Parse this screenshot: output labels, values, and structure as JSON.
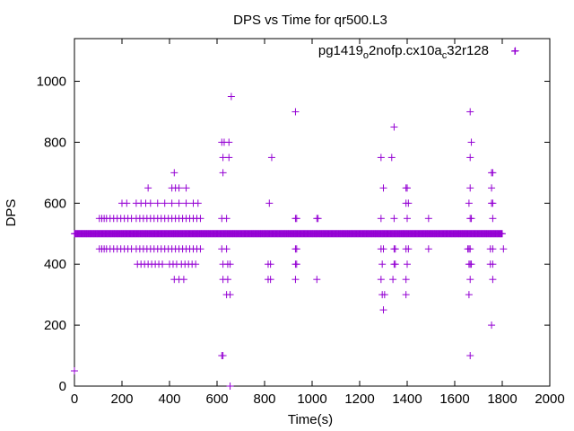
{
  "chart_data": {
    "type": "scatter",
    "title": "DPS vs Time for qr500.L3",
    "xlabel": "Time(s)",
    "ylabel": "DPS",
    "xlim": [
      0,
      2000
    ],
    "ylim": [
      0,
      1140
    ],
    "xticks": [
      0,
      200,
      400,
      600,
      800,
      1000,
      1200,
      1400,
      1600,
      1800,
      2000
    ],
    "yticks": [
      0,
      200,
      400,
      600,
      800,
      1000
    ],
    "grid": false,
    "legend_position": "top-right",
    "marker": "plus",
    "colors": {
      "series": "#9400d3",
      "axis": "#000000"
    },
    "series": [
      {
        "name_parts": [
          "pg1419",
          "o",
          "2nofp.cx10a",
          "c",
          "32r128"
        ],
        "baseline": {
          "y": 500,
          "x_start": 0,
          "x_end": 1800,
          "step": 3
        },
        "points": [
          [
            0,
            50
          ],
          [
            105,
            550
          ],
          [
            115,
            550
          ],
          [
            125,
            550
          ],
          [
            135,
            550
          ],
          [
            150,
            550
          ],
          [
            165,
            550
          ],
          [
            180,
            550
          ],
          [
            195,
            550
          ],
          [
            210,
            550
          ],
          [
            225,
            550
          ],
          [
            240,
            550
          ],
          [
            260,
            550
          ],
          [
            275,
            550
          ],
          [
            290,
            550
          ],
          [
            305,
            550
          ],
          [
            320,
            550
          ],
          [
            335,
            550
          ],
          [
            350,
            550
          ],
          [
            365,
            550
          ],
          [
            380,
            550
          ],
          [
            395,
            550
          ],
          [
            410,
            550
          ],
          [
            425,
            550
          ],
          [
            440,
            550
          ],
          [
            455,
            550
          ],
          [
            470,
            550
          ],
          [
            485,
            550
          ],
          [
            500,
            550
          ],
          [
            515,
            550
          ],
          [
            530,
            550
          ],
          [
            105,
            450
          ],
          [
            115,
            450
          ],
          [
            125,
            450
          ],
          [
            135,
            450
          ],
          [
            150,
            450
          ],
          [
            165,
            450
          ],
          [
            180,
            450
          ],
          [
            195,
            450
          ],
          [
            210,
            450
          ],
          [
            225,
            450
          ],
          [
            240,
            450
          ],
          [
            260,
            450
          ],
          [
            275,
            450
          ],
          [
            290,
            450
          ],
          [
            305,
            450
          ],
          [
            320,
            450
          ],
          [
            335,
            450
          ],
          [
            350,
            450
          ],
          [
            365,
            450
          ],
          [
            380,
            450
          ],
          [
            395,
            450
          ],
          [
            410,
            450
          ],
          [
            425,
            450
          ],
          [
            440,
            450
          ],
          [
            455,
            450
          ],
          [
            470,
            450
          ],
          [
            485,
            450
          ],
          [
            500,
            450
          ],
          [
            515,
            450
          ],
          [
            530,
            450
          ],
          [
            265,
            400
          ],
          [
            280,
            400
          ],
          [
            295,
            400
          ],
          [
            310,
            400
          ],
          [
            325,
            400
          ],
          [
            340,
            400
          ],
          [
            355,
            400
          ],
          [
            370,
            400
          ],
          [
            400,
            400
          ],
          [
            415,
            400
          ],
          [
            430,
            400
          ],
          [
            450,
            400
          ],
          [
            465,
            400
          ],
          [
            480,
            400
          ],
          [
            495,
            400
          ],
          [
            510,
            400
          ],
          [
            200,
            600
          ],
          [
            220,
            600
          ],
          [
            260,
            600
          ],
          [
            280,
            600
          ],
          [
            300,
            600
          ],
          [
            320,
            600
          ],
          [
            350,
            600
          ],
          [
            380,
            600
          ],
          [
            410,
            600
          ],
          [
            440,
            600
          ],
          [
            470,
            600
          ],
          [
            500,
            600
          ],
          [
            520,
            600
          ],
          [
            310,
            650
          ],
          [
            410,
            650
          ],
          [
            425,
            650
          ],
          [
            440,
            650
          ],
          [
            470,
            650
          ],
          [
            420,
            700
          ],
          [
            420,
            350
          ],
          [
            440,
            350
          ],
          [
            460,
            350
          ],
          [
            620,
            800
          ],
          [
            630,
            800
          ],
          [
            650,
            800
          ],
          [
            625,
            750
          ],
          [
            650,
            750
          ],
          [
            625,
            700
          ],
          [
            620,
            550
          ],
          [
            640,
            550
          ],
          [
            620,
            450
          ],
          [
            640,
            450
          ],
          [
            625,
            400
          ],
          [
            645,
            400
          ],
          [
            655,
            400
          ],
          [
            625,
            350
          ],
          [
            645,
            350
          ],
          [
            640,
            300
          ],
          [
            655,
            300
          ],
          [
            620,
            100
          ],
          [
            625,
            100
          ],
          [
            660,
            950
          ],
          [
            655,
            0
          ],
          [
            830,
            750
          ],
          [
            820,
            600
          ],
          [
            815,
            400
          ],
          [
            825,
            400
          ],
          [
            815,
            350
          ],
          [
            825,
            350
          ],
          [
            930,
            900
          ],
          [
            930,
            550
          ],
          [
            935,
            550
          ],
          [
            930,
            450
          ],
          [
            935,
            450
          ],
          [
            930,
            400
          ],
          [
            935,
            400
          ],
          [
            930,
            350
          ],
          [
            1020,
            550
          ],
          [
            1025,
            550
          ],
          [
            1020,
            350
          ],
          [
            1290,
            750
          ],
          [
            1335,
            750
          ],
          [
            1345,
            850
          ],
          [
            1300,
            650
          ],
          [
            1395,
            650
          ],
          [
            1400,
            650
          ],
          [
            1395,
            600
          ],
          [
            1405,
            600
          ],
          [
            1290,
            550
          ],
          [
            1345,
            550
          ],
          [
            1400,
            550
          ],
          [
            1490,
            550
          ],
          [
            1290,
            450
          ],
          [
            1300,
            450
          ],
          [
            1345,
            450
          ],
          [
            1350,
            450
          ],
          [
            1395,
            450
          ],
          [
            1405,
            450
          ],
          [
            1490,
            450
          ],
          [
            1295,
            400
          ],
          [
            1345,
            400
          ],
          [
            1350,
            400
          ],
          [
            1400,
            400
          ],
          [
            1290,
            350
          ],
          [
            1340,
            350
          ],
          [
            1395,
            350
          ],
          [
            1295,
            300
          ],
          [
            1305,
            300
          ],
          [
            1395,
            300
          ],
          [
            1300,
            250
          ],
          [
            1665,
            900
          ],
          [
            1670,
            800
          ],
          [
            1665,
            750
          ],
          [
            1665,
            650
          ],
          [
            1660,
            600
          ],
          [
            1665,
            550
          ],
          [
            1670,
            550
          ],
          [
            1655,
            450
          ],
          [
            1660,
            450
          ],
          [
            1665,
            450
          ],
          [
            1660,
            400
          ],
          [
            1665,
            400
          ],
          [
            1670,
            400
          ],
          [
            1665,
            350
          ],
          [
            1660,
            300
          ],
          [
            1665,
            100
          ],
          [
            1755,
            700
          ],
          [
            1760,
            700
          ],
          [
            1755,
            650
          ],
          [
            1755,
            600
          ],
          [
            1760,
            600
          ],
          [
            1760,
            550
          ],
          [
            1750,
            450
          ],
          [
            1760,
            450
          ],
          [
            1805,
            450
          ],
          [
            1750,
            400
          ],
          [
            1760,
            400
          ],
          [
            1760,
            350
          ],
          [
            1755,
            200
          ],
          [
            1855,
            1100
          ]
        ]
      }
    ]
  }
}
